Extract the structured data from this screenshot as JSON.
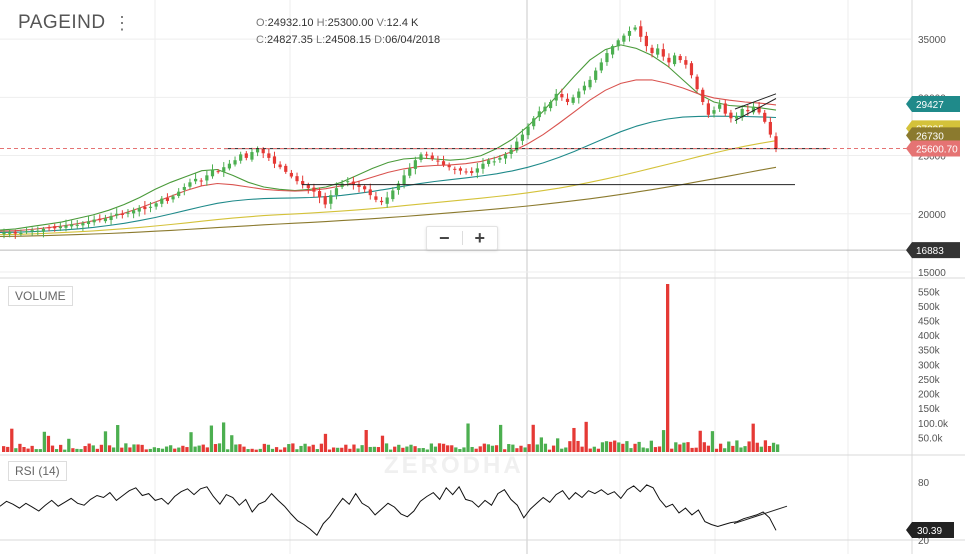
{
  "header": {
    "symbol": "PAGEIND",
    "menu_icon": "kebab-menu-icon",
    "ohlc": {
      "o_label": "O:",
      "o": "24932.10",
      "h_label": "H:",
      "h": "25300.00",
      "v_label": "V:",
      "v": "12.4 K",
      "c_label": "C:",
      "c": "24827.35",
      "l_label": "L:",
      "l": "24508.15",
      "d_label": "D:",
      "d": "06/04/2018"
    }
  },
  "watermark": "ZERODHA",
  "zoom": {
    "minus": "−",
    "plus": "+"
  },
  "panes": {
    "volume_label": "VOLUME",
    "rsi_label": "RSI (14)"
  },
  "colors": {
    "up": "#4caf50",
    "down": "#e53935",
    "ma1": "#4a9a3a",
    "ma2": "#d9534f",
    "ma3": "#1f8a8a",
    "ma4": "#d4c23a",
    "ma5": "#8b7a2e",
    "grid": "#eeeeee",
    "last_price": "#e57373"
  },
  "chart_data": [
    {
      "type": "candlestick",
      "pane": "price",
      "ylim": [
        15000,
        37500
      ],
      "y_ticks": [
        15000,
        20000,
        25000,
        30000,
        35000
      ],
      "y_tick_labels": [
        "15000",
        "20000",
        "25000",
        "30000",
        "35000"
      ],
      "price_tags": [
        {
          "label": "29427",
          "value": 29427,
          "color": "#1f8a8a"
        },
        {
          "label": "27335",
          "value": 27335,
          "color": "#d4c23a"
        },
        {
          "label": "26730",
          "value": 26730,
          "color": "#8b7a2e"
        },
        {
          "label": "25600.70",
          "value": 25600.7,
          "color": "#e57373"
        },
        {
          "label": "16883",
          "value": 16883,
          "color": "#333333"
        }
      ],
      "close_series": [
        18400,
        18450,
        18300,
        18350,
        18500,
        18600,
        18550,
        18700,
        18800,
        18750,
        18900,
        19000,
        19100,
        19050,
        19200,
        19350,
        19500,
        19450,
        19600,
        19800,
        20000,
        19900,
        20100,
        20300,
        20500,
        20400,
        20600,
        20900,
        21300,
        21100,
        21500,
        21900,
        22300,
        22700,
        23000,
        22800,
        23300,
        23800,
        23600,
        24000,
        24300,
        24600,
        25100,
        24800,
        25300,
        25600,
        25200,
        24800,
        24300,
        24000,
        23600,
        23200,
        22800,
        22500,
        22200,
        21900,
        21400,
        20800,
        21600,
        22200,
        22600,
        22800,
        22500,
        22300,
        22100,
        21600,
        21200,
        21000,
        21400,
        22000,
        22600,
        23300,
        23900,
        24600,
        25100,
        25000,
        24700,
        24500,
        24200,
        24000,
        23800,
        23700,
        23600,
        23500,
        23900,
        24300,
        24600,
        24500,
        24800,
        25100,
        25500,
        26200,
        26800,
        27500,
        28200,
        28800,
        29200,
        29600,
        30300,
        30000,
        29600,
        30000,
        30500,
        31000,
        31500,
        32300,
        33000,
        33800,
        34400,
        34900,
        35300,
        35700,
        36000,
        35200,
        34400,
        33800,
        34200,
        33500,
        33000,
        33600,
        33200,
        32800,
        31900,
        30700,
        29600,
        28500,
        28900,
        29400,
        28600,
        28200,
        28400,
        29000,
        28800,
        29200,
        28700,
        27900,
        26800,
        25600
      ],
      "close_series_start": "2017-10-20",
      "ma_series": [
        {
          "values": [
            18600,
            18700,
            18900,
            19100,
            19300,
            19600,
            19900,
            20300,
            20800,
            21400,
            22100,
            22700,
            23200,
            23700,
            23800,
            23300,
            22700,
            22300,
            22100,
            22000,
            22100,
            22300,
            22700,
            23300,
            23900,
            24400,
            24700,
            24800,
            24700,
            24600,
            24700,
            25000,
            25600,
            26400,
            27500,
            28800,
            30300,
            31800,
            33200,
            34100,
            34500,
            34200,
            33600,
            32700,
            31500,
            30300,
            29600,
            29300,
            29200,
            29100,
            28900
          ]
        },
        {
          "values": [
            18500,
            18550,
            18650,
            18800,
            18950,
            19150,
            19400,
            19700,
            20050,
            20500,
            21000,
            21500,
            22000,
            22400,
            22600,
            22500,
            22300,
            22100,
            22000,
            21950,
            22000,
            22150,
            22400,
            22750,
            23150,
            23550,
            23850,
            24050,
            24150,
            24200,
            24300,
            24500,
            24850,
            25350,
            26000,
            26800,
            27750,
            28750,
            29750,
            30600,
            31200,
            31500,
            31500,
            31200,
            30800,
            30300,
            29950,
            29750,
            29600,
            29500,
            29350
          ]
        },
        {
          "values": [
            18400,
            18420,
            18460,
            18520,
            18600,
            18700,
            18830,
            18990,
            19180,
            19410,
            19680,
            19980,
            20300,
            20620,
            20900,
            21100,
            21230,
            21300,
            21340,
            21360,
            21400,
            21470,
            21580,
            21730,
            21920,
            22140,
            22370,
            22580,
            22770,
            22930,
            23080,
            23240,
            23430,
            23680,
            23990,
            24370,
            24830,
            25350,
            25920,
            26500,
            27050,
            27520,
            27880,
            28140,
            28300,
            28360,
            28380,
            28370,
            28350,
            28320,
            28270
          ]
        },
        {
          "values": [
            18200,
            18230,
            18270,
            18320,
            18380,
            18450,
            18530,
            18620,
            18720,
            18830,
            18950,
            19080,
            19220,
            19360,
            19500,
            19630,
            19740,
            19840,
            19920,
            19990,
            20060,
            20140,
            20230,
            20330,
            20440,
            20560,
            20690,
            20820,
            20950,
            21080,
            21210,
            21340,
            21480,
            21630,
            21800,
            21990,
            22200,
            22440,
            22700,
            22980,
            23280,
            23590,
            23910,
            24240,
            24570,
            24900,
            25220,
            25520,
            25800,
            26050,
            26280
          ]
        },
        {
          "values": [
            18050,
            18070,
            18100,
            18130,
            18170,
            18210,
            18260,
            18310,
            18370,
            18430,
            18500,
            18570,
            18650,
            18730,
            18810,
            18890,
            18970,
            19050,
            19120,
            19190,
            19260,
            19330,
            19410,
            19490,
            19580,
            19670,
            19770,
            19870,
            19970,
            20080,
            20190,
            20300,
            20420,
            20540,
            20670,
            20810,
            20960,
            21120,
            21290,
            21470,
            21660,
            21860,
            22070,
            22290,
            22520,
            22760,
            23000,
            23250,
            23500,
            23750,
            23990
          ]
        }
      ]
    },
    {
      "type": "bar",
      "pane": "volume",
      "ylim": [
        0,
        575000
      ],
      "y_ticks": [
        50000,
        100000,
        150000,
        200000,
        250000,
        300000,
        350000,
        400000,
        450000,
        500000,
        550000
      ],
      "y_tick_labels": [
        "50.0k",
        "100.0k",
        "150k",
        "200k",
        "250k",
        "300k",
        "350k",
        "400k",
        "450k",
        "500k",
        "550k"
      ],
      "highlight": {
        "index_ratio": 0.857,
        "value": 575000
      }
    },
    {
      "type": "line",
      "pane": "rsi",
      "ylim": [
        20,
        80
      ],
      "y_ticks": [
        20,
        80
      ],
      "y_tick_labels": [
        "20",
        "80"
      ],
      "last_value_label": "30.39",
      "values": [
        55,
        60,
        57,
        53,
        58,
        54,
        50,
        56,
        61,
        55,
        59,
        63,
        58,
        56,
        62,
        66,
        64,
        69,
        61,
        66,
        71,
        74,
        66,
        68,
        61,
        63,
        57,
        65,
        70,
        73,
        67,
        73,
        75,
        65,
        57,
        67,
        64,
        56,
        62,
        49,
        57,
        60,
        68,
        61,
        55,
        47,
        40,
        36,
        31,
        25,
        37,
        44,
        54,
        63,
        57,
        68,
        58,
        54,
        46,
        52,
        58,
        54,
        47,
        44,
        50,
        60,
        65,
        69,
        62,
        74,
        67,
        75,
        62,
        60,
        54,
        61,
        56,
        68,
        72,
        62,
        56,
        43,
        52,
        58,
        64,
        59,
        67,
        71,
        62,
        69,
        64,
        71,
        68,
        72,
        67,
        70,
        63,
        72,
        76,
        70,
        77,
        74,
        62,
        54,
        57,
        48,
        53,
        46,
        51,
        39,
        36,
        34,
        36,
        38,
        39,
        42,
        44,
        46,
        49,
        43,
        30
      ]
    }
  ]
}
